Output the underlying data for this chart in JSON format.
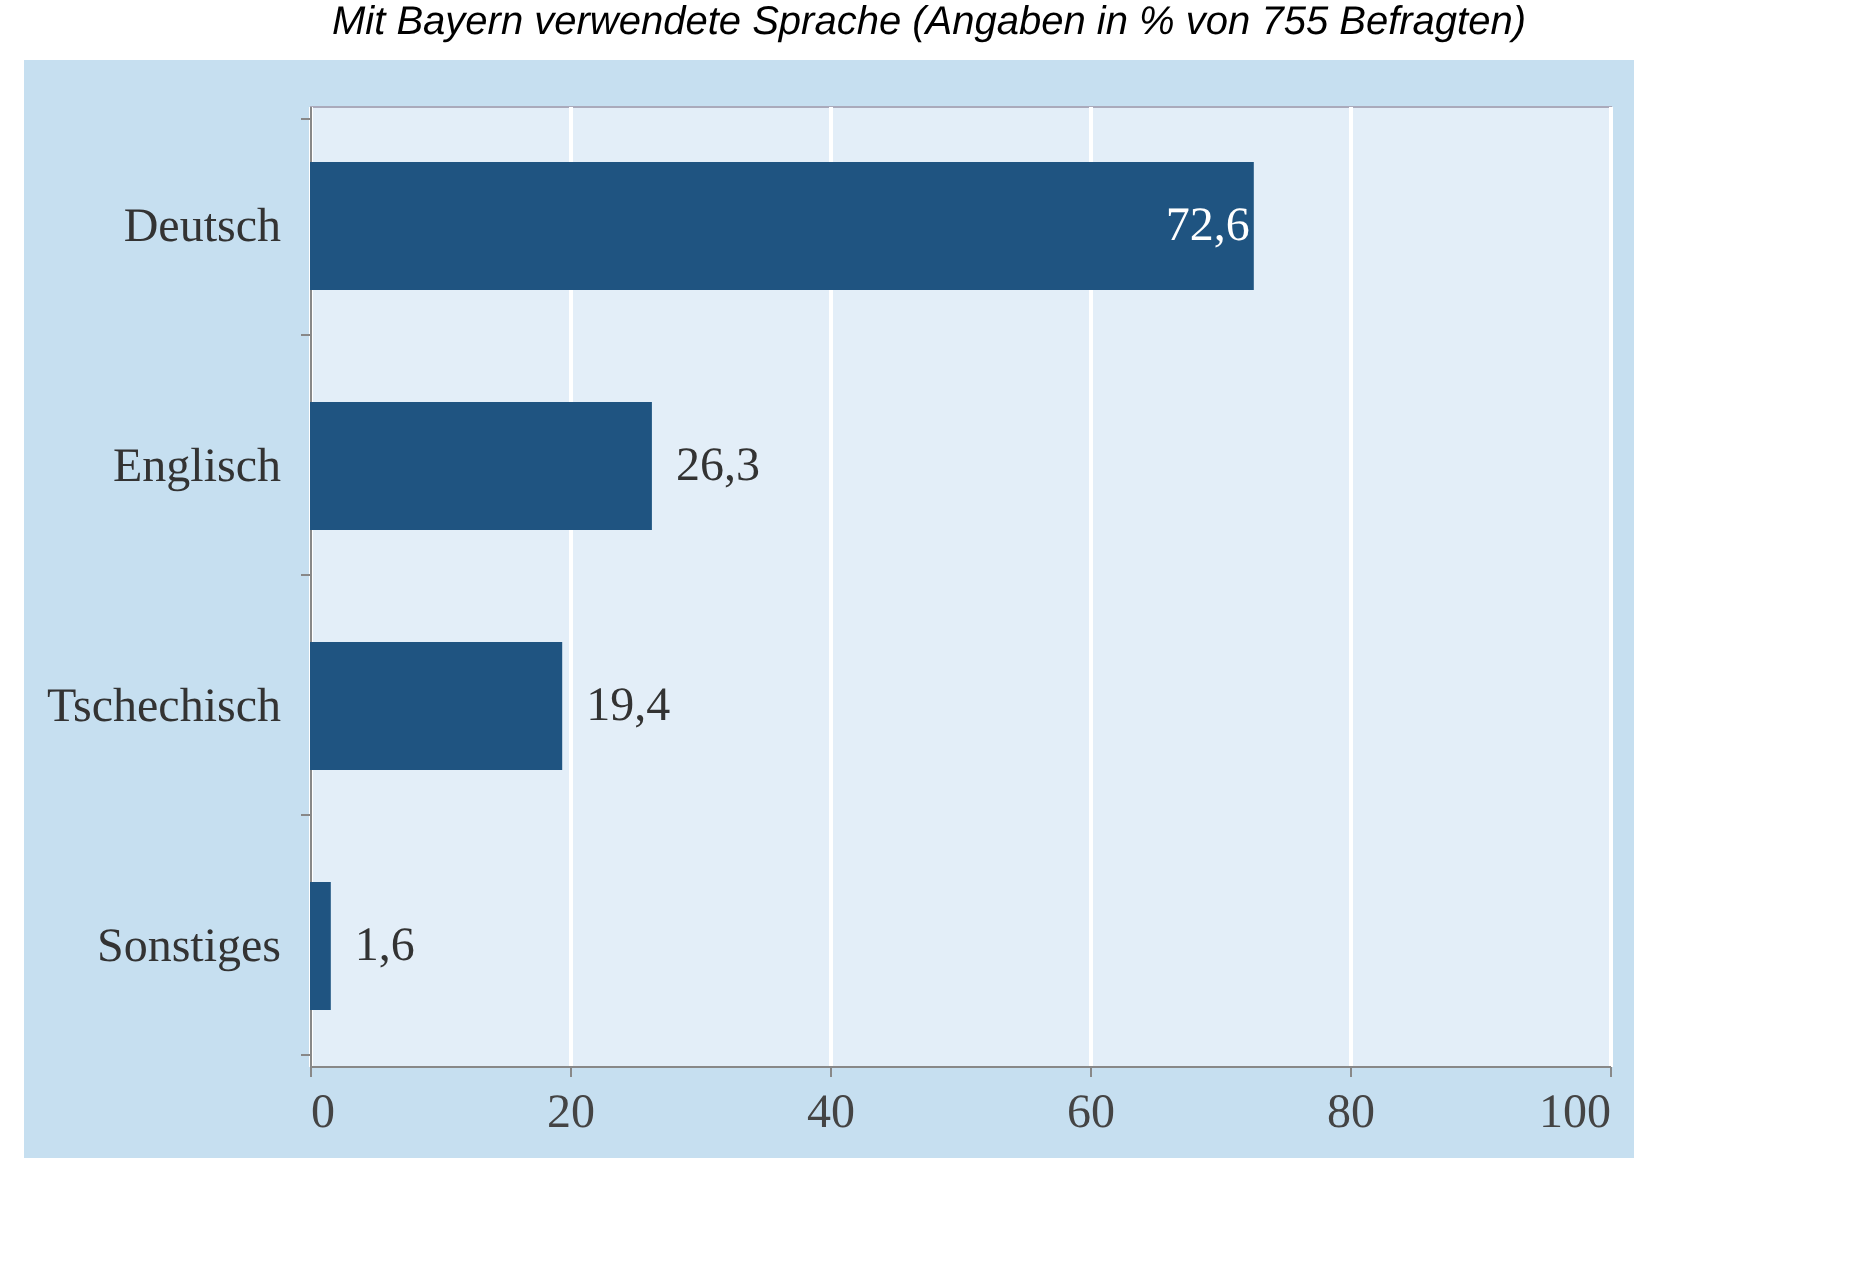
{
  "chart_data": {
    "type": "bar",
    "orientation": "horizontal",
    "title": "Mit Bayern verwendete Sprache (Angaben in % von 755 Befragten)",
    "categories": [
      "Deutsch",
      "Englisch",
      "Tschechisch",
      "Sonstiges"
    ],
    "values": [
      72.6,
      26.3,
      19.4,
      1.6
    ],
    "value_labels": [
      "72,6",
      "26,3",
      "19,4",
      "1,6"
    ],
    "color": "#1f5481",
    "xlim": [
      0,
      100
    ],
    "xticks": [
      0,
      20,
      40,
      60,
      80,
      100
    ],
    "grid": "x"
  }
}
